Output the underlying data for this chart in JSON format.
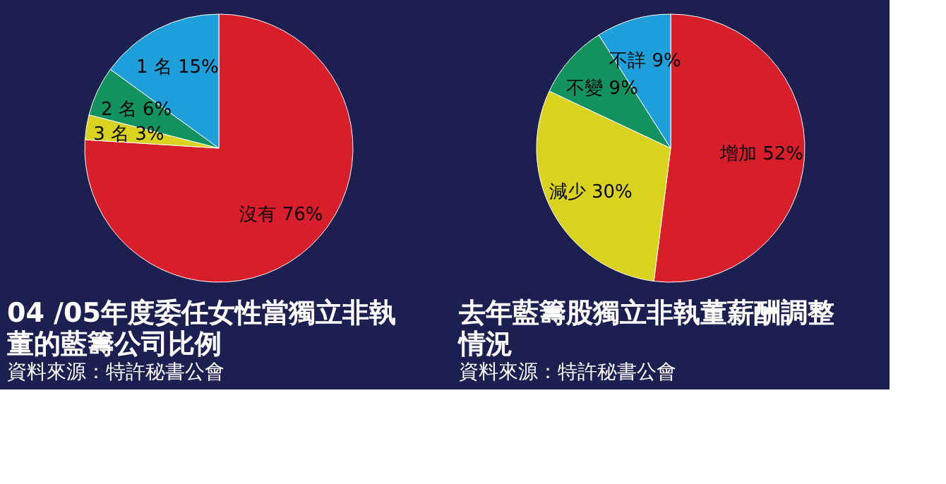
{
  "chart_data": [
    {
      "type": "pie",
      "title": "04 /05年度委任女性當獨立非執董的藍籌公司比例",
      "categories": [
        "沒有",
        "3 名",
        "2 名",
        "1 名"
      ],
      "values": [
        76,
        3,
        6,
        15
      ],
      "value_labels": [
        "76%",
        "3%",
        "6%",
        "15%"
      ],
      "colors": [
        "#d81e2a",
        "#d9d21e",
        "#12925e",
        "#1e9fd9"
      ],
      "annotations": [
        "資料來源：特許秘書公會"
      ],
      "legend": false
    },
    {
      "type": "pie",
      "title": "去年藍籌股獨立非執董薪酬調整情況",
      "categories": [
        "增加",
        "減少",
        "不變",
        "不詳"
      ],
      "values": [
        52,
        30,
        9,
        9
      ],
      "value_labels": [
        "52%",
        "30%",
        "9%",
        "9%"
      ],
      "colors": [
        "#d81e2a",
        "#d9d21e",
        "#12925e",
        "#1e9fd9"
      ],
      "annotations": [
        "資料來源：特許秘書公會"
      ],
      "legend": false
    }
  ]
}
